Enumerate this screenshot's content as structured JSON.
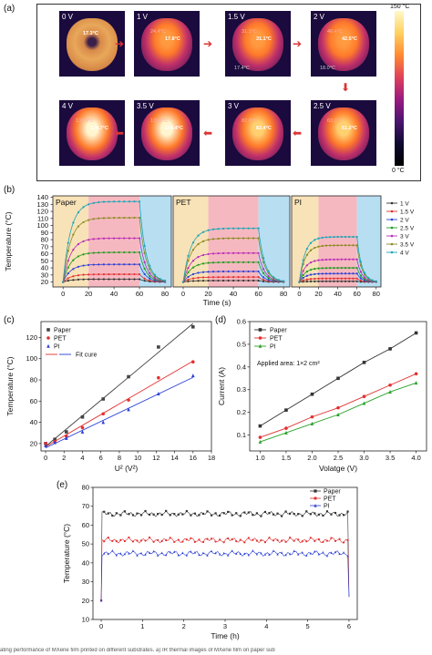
{
  "panel_a": {
    "letter": "(a)",
    "colorbar": {
      "max": "150 °C",
      "min": "0 °C"
    },
    "images": [
      {
        "voltage": "0 V",
        "t1": "",
        "t2": "17.3°C"
      },
      {
        "voltage": "1 V",
        "t1": "24.4°C",
        "t2": "17.8°C"
      },
      {
        "voltage": "1.5 V",
        "t1": "31.3°C",
        "t2": "31.1°C",
        "t3": "17.4°C"
      },
      {
        "voltage": "2 V",
        "t1": "46.4°C",
        "t2": "42.5°C",
        "t3": "18.0°C"
      },
      {
        "voltage": "4 V",
        "t1": "130.8°C",
        "t2": "124.7°C"
      },
      {
        "voltage": "3.5 V",
        "t1": "111.1°C",
        "t2": "104.4°C"
      },
      {
        "voltage": "3 V",
        "t1": "82.8°C",
        "t2": "82.4°C"
      },
      {
        "voltage": "2.5 V",
        "t1": "63.2°C",
        "t2": "61.2°C"
      }
    ]
  },
  "panel_b": {
    "letter": "(b)",
    "ylabel": "Temperature (°C)",
    "xlabel": "Time (s)",
    "subpanels": [
      "Paper",
      "PET",
      "PI"
    ],
    "legend": [
      "1 V",
      "1.5 V",
      "2 V",
      "2.5 V",
      "3 V",
      "3.5 V",
      "4 V"
    ],
    "series_colors": [
      "#333333",
      "#e23030",
      "#2a3fd6",
      "#1f9a1f",
      "#b82bb8",
      "#8a8a20",
      "#1aa5b8"
    ]
  },
  "panel_c": {
    "letter": "(c)"
  },
  "panel_d": {
    "letter": "(d)",
    "note": "Applied area: 1×2 cm²"
  },
  "panel_e": {
    "letter": "(e)"
  },
  "caption": "ating performance of MXene film printed on different substrates. a) IR thermal images of MXene film on paper sub",
  "chart_data": [
    {
      "type": "line",
      "panel": "b",
      "xlabel": "Time (s)",
      "ylabel": "Temperature (°C)",
      "xticks": [
        "0",
        "20",
        "40",
        "60",
        "80"
      ],
      "yticks": [
        "20",
        "30",
        "40",
        "50",
        "60",
        "70",
        "80",
        "90",
        "100",
        "110",
        "120",
        "130",
        "140"
      ],
      "xlim": [
        -8,
        85
      ],
      "ylim": [
        13,
        142
      ],
      "region_colors": [
        "#f8e2b8",
        "#f6b8c0",
        "#b8def2"
      ],
      "region_bounds": [
        -8,
        20,
        60,
        85
      ],
      "plateau": {
        "Paper": [
          24,
          31,
          45,
          62,
          82,
          111,
          134
        ],
        "PET": [
          22,
          27,
          35,
          48,
          61,
          82,
          96
        ],
        "PI": [
          21,
          25,
          32,
          40,
          52,
          72,
          84
        ]
      },
      "ambient": 20
    },
    {
      "type": "scatter",
      "panel": "c",
      "xlabel": "U² (V²)",
      "ylabel": "Temperature (°C)",
      "xlim": [
        -0.5,
        18
      ],
      "ylim": [
        13,
        135
      ],
      "xticks": [
        "0",
        "2",
        "4",
        "6",
        "8",
        "10",
        "12",
        "14",
        "16",
        "18"
      ],
      "yticks": [
        "20",
        "40",
        "60",
        "80",
        "100",
        "120"
      ],
      "legend_fit": "Fit cure",
      "series": [
        {
          "name": "Paper",
          "x": [
            0,
            1,
            2.25,
            4,
            6.25,
            9,
            12.25,
            16
          ],
          "y": [
            20,
            24,
            31,
            45,
            62,
            83,
            111,
            130
          ],
          "color": "#444444",
          "marker": "square"
        },
        {
          "name": "PET",
          "x": [
            0,
            1,
            2.25,
            4,
            6.25,
            9,
            12.25,
            16
          ],
          "y": [
            20,
            22,
            27,
            35,
            48,
            61,
            82,
            97
          ],
          "color": "#e23030",
          "marker": "circle"
        },
        {
          "name": "PI",
          "x": [
            0,
            1,
            2.25,
            4,
            6.25,
            9,
            12.25,
            16
          ],
          "y": [
            18,
            21,
            25,
            31,
            40,
            52,
            67,
            84
          ],
          "color": "#2a3fd6",
          "marker": "triangle"
        }
      ]
    },
    {
      "type": "line",
      "panel": "d",
      "xlabel": "Volatge (V)",
      "ylabel": "Current (A)",
      "xlim": [
        0.8,
        4.2
      ],
      "ylim": [
        0.03,
        0.6
      ],
      "xticks": [
        "1.0",
        "1.5",
        "2.0",
        "2.5",
        "3.0",
        "3.5",
        "4.0"
      ],
      "yticks": [
        "0.1",
        "0.2",
        "0.3",
        "0.4",
        "0.5",
        "0.6"
      ],
      "series": [
        {
          "name": "Paper",
          "x": [
            1,
            1.5,
            2,
            2.5,
            3,
            3.5,
            4
          ],
          "y": [
            0.14,
            0.21,
            0.28,
            0.35,
            0.42,
            0.48,
            0.55
          ],
          "color": "#333333",
          "marker": "square"
        },
        {
          "name": "PET",
          "x": [
            1,
            1.5,
            2,
            2.5,
            3,
            3.5,
            4
          ],
          "y": [
            0.09,
            0.13,
            0.18,
            0.22,
            0.27,
            0.32,
            0.37
          ],
          "color": "#e23030",
          "marker": "circle"
        },
        {
          "name": "PI",
          "x": [
            1,
            1.5,
            2,
            2.5,
            3,
            3.5,
            4
          ],
          "y": [
            0.07,
            0.11,
            0.15,
            0.19,
            0.24,
            0.29,
            0.33
          ],
          "color": "#2aa02a",
          "marker": "triangle"
        }
      ]
    },
    {
      "type": "scatter",
      "panel": "e",
      "xlabel": "Time (h)",
      "ylabel": "Temperature (°C)",
      "xlim": [
        -0.2,
        6.2
      ],
      "ylim": [
        10,
        80
      ],
      "xticks": [
        "0",
        "1",
        "2",
        "3",
        "4",
        "5",
        "6"
      ],
      "yticks": [
        "10",
        "20",
        "30",
        "40",
        "50",
        "60",
        "70",
        "80"
      ],
      "series": [
        {
          "name": "Paper",
          "level": 66,
          "color": "#333333",
          "marker": "square"
        },
        {
          "name": "PET",
          "level": 52,
          "color": "#e23030",
          "marker": "circle"
        },
        {
          "name": "PI",
          "level": 45,
          "color": "#2a3fd6",
          "marker": "triangle"
        }
      ]
    }
  ]
}
